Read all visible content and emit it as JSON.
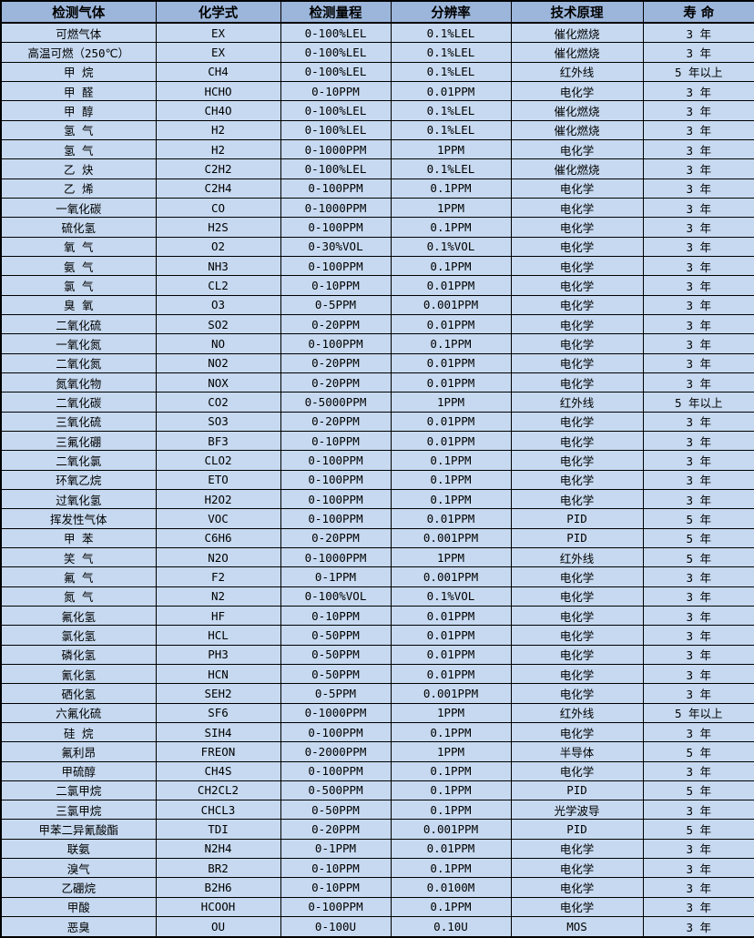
{
  "colors": {
    "header_bg": "#9cb6db",
    "row_bg": "#c6d9f0",
    "border": "#000000",
    "text": "#000000"
  },
  "table": {
    "headers": [
      "检测气体",
      "化学式",
      "检测量程",
      "分辨率",
      "技术原理",
      "寿  命"
    ],
    "rows": [
      [
        "可燃气体",
        "EX",
        "0-100%LEL",
        "0.1%LEL",
        "催化燃烧",
        "3 年"
      ],
      [
        "高温可燃（250℃）",
        "EX",
        "0-100%LEL",
        "0.1%LEL",
        "催化燃烧",
        "3 年"
      ],
      [
        "甲  烷",
        "CH4",
        "0-100%LEL",
        "0.1%LEL",
        "红外线",
        "5 年以上"
      ],
      [
        "甲  醛",
        "HCHO",
        "0-10PPM",
        "0.01PPM",
        "电化学",
        "3 年"
      ],
      [
        "甲  醇",
        "CH4O",
        "0-100%LEL",
        "0.1%LEL",
        "催化燃烧",
        "3 年"
      ],
      [
        "氢  气",
        "H2",
        "0-100%LEL",
        "0.1%LEL",
        "催化燃烧",
        "3 年"
      ],
      [
        "氢  气",
        "H2",
        "0-1000PPM",
        "1PPM",
        "电化学",
        "3 年"
      ],
      [
        "乙  炔",
        "C2H2",
        "0-100%LEL",
        "0.1%LEL",
        "催化燃烧",
        "3 年"
      ],
      [
        "乙  烯",
        "C2H4",
        "0-100PPM",
        "0.1PPM",
        "电化学",
        "3 年"
      ],
      [
        "一氧化碳",
        "CO",
        "0-1000PPM",
        "1PPM",
        "电化学",
        "3 年"
      ],
      [
        "硫化氢",
        "H2S",
        "0-100PPM",
        "0.1PPM",
        "电化学",
        "3 年"
      ],
      [
        "氧  气",
        "O2",
        "0-30%VOL",
        "0.1%VOL",
        "电化学",
        "3 年"
      ],
      [
        "氨  气",
        "NH3",
        "0-100PPM",
        "0.1PPM",
        "电化学",
        "3 年"
      ],
      [
        "氯  气",
        "CL2",
        "0-10PPM",
        "0.01PPM",
        "电化学",
        "3 年"
      ],
      [
        "臭  氧",
        "O3",
        "0-5PPM",
        "0.001PPM",
        "电化学",
        "3 年"
      ],
      [
        "二氧化硫",
        "SO2",
        "0-20PPM",
        "0.01PPM",
        "电化学",
        "3 年"
      ],
      [
        "一氧化氮",
        "NO",
        "0-100PPM",
        "0.1PPM",
        "电化学",
        "3 年"
      ],
      [
        "二氧化氮",
        "NO2",
        "0-20PPM",
        "0.01PPM",
        "电化学",
        "3 年"
      ],
      [
        "氮氧化物",
        "NOX",
        "0-20PPM",
        "0.01PPM",
        "电化学",
        "3 年"
      ],
      [
        "二氧化碳",
        "CO2",
        "0-5000PPM",
        "1PPM",
        "红外线",
        "5 年以上"
      ],
      [
        "三氧化硫",
        "SO3",
        "0-20PPM",
        "0.01PPM",
        "电化学",
        "3 年"
      ],
      [
        "三氟化硼",
        "BF3",
        "0-10PPM",
        "0.01PPM",
        "电化学",
        "3 年"
      ],
      [
        "二氧化氯",
        "CLO2",
        "0-100PPM",
        "0.1PPM",
        "电化学",
        "3 年"
      ],
      [
        "环氧乙烷",
        "ETO",
        "0-100PPM",
        "0.1PPM",
        "电化学",
        "3 年"
      ],
      [
        "过氧化氢",
        "H2O2",
        "0-100PPM",
        "0.1PPM",
        "电化学",
        "3 年"
      ],
      [
        "挥发性气体",
        "VOC",
        "0-100PPM",
        "0.01PPM",
        "PID",
        "5 年"
      ],
      [
        "甲  苯",
        "C6H6",
        "0-20PPM",
        "0.001PPM",
        "PID",
        "5 年"
      ],
      [
        "笑  气",
        "N2O",
        "0-1000PPM",
        "1PPM",
        "红外线",
        "5 年"
      ],
      [
        "氟  气",
        "F2",
        "0-1PPM",
        "0.001PPM",
        "电化学",
        "3 年"
      ],
      [
        "氮  气",
        "N2",
        "0-100%VOL",
        "0.1%VOL",
        "电化学",
        "3 年"
      ],
      [
        "氟化氢",
        "HF",
        "0-10PPM",
        "0.01PPM",
        "电化学",
        "3 年"
      ],
      [
        "氯化氢",
        "HCL",
        "0-50PPM",
        "0.01PPM",
        "电化学",
        "3 年"
      ],
      [
        "磷化氢",
        "PH3",
        "0-50PPM",
        "0.01PPM",
        "电化学",
        "3 年"
      ],
      [
        "氰化氢",
        "HCN",
        "0-50PPM",
        "0.01PPM",
        "电化学",
        "3 年"
      ],
      [
        "硒化氢",
        "SEH2",
        "0-5PPM",
        "0.001PPM",
        "电化学",
        "3 年"
      ],
      [
        "六氟化硫",
        "SF6",
        "0-1000PPM",
        "1PPM",
        "红外线",
        "5 年以上"
      ],
      [
        "硅  烷",
        "SIH4",
        "0-100PPM",
        "0.1PPM",
        "电化学",
        "3 年"
      ],
      [
        "氟利昂",
        "FREON",
        "0-2000PPM",
        "1PPM",
        "半导体",
        "5 年"
      ],
      [
        "甲硫醇",
        "CH4S",
        "0-100PPM",
        "0.1PPM",
        "电化学",
        "3 年"
      ],
      [
        "二氯甲烷",
        "CH2CL2",
        "0-500PPM",
        "0.1PPM",
        "PID",
        "5 年"
      ],
      [
        "三氯甲烷",
        "CHCL3",
        "0-50PPM",
        "0.1PPM",
        "光学波导",
        "3 年"
      ],
      [
        "甲苯二异氰酸酯",
        "TDI",
        "0-20PPM",
        "0.001PPM",
        "PID",
        "5 年"
      ],
      [
        "联氨",
        "N2H4",
        "0-1PPM",
        "0.01PPM",
        "电化学",
        "3 年"
      ],
      [
        "溴气",
        "BR2",
        "0-10PPM",
        "0.1PPM",
        "电化学",
        "3 年"
      ],
      [
        "乙硼烷",
        "B2H6",
        "0-10PPM",
        "0.0100M",
        "电化学",
        "3 年"
      ],
      [
        "甲酸",
        "HCOOH",
        "0-100PPM",
        "0.1PPM",
        "电化学",
        "3 年"
      ],
      [
        "恶臭",
        "OU",
        "0-100U",
        "0.10U",
        "MOS",
        "3 年"
      ]
    ]
  }
}
